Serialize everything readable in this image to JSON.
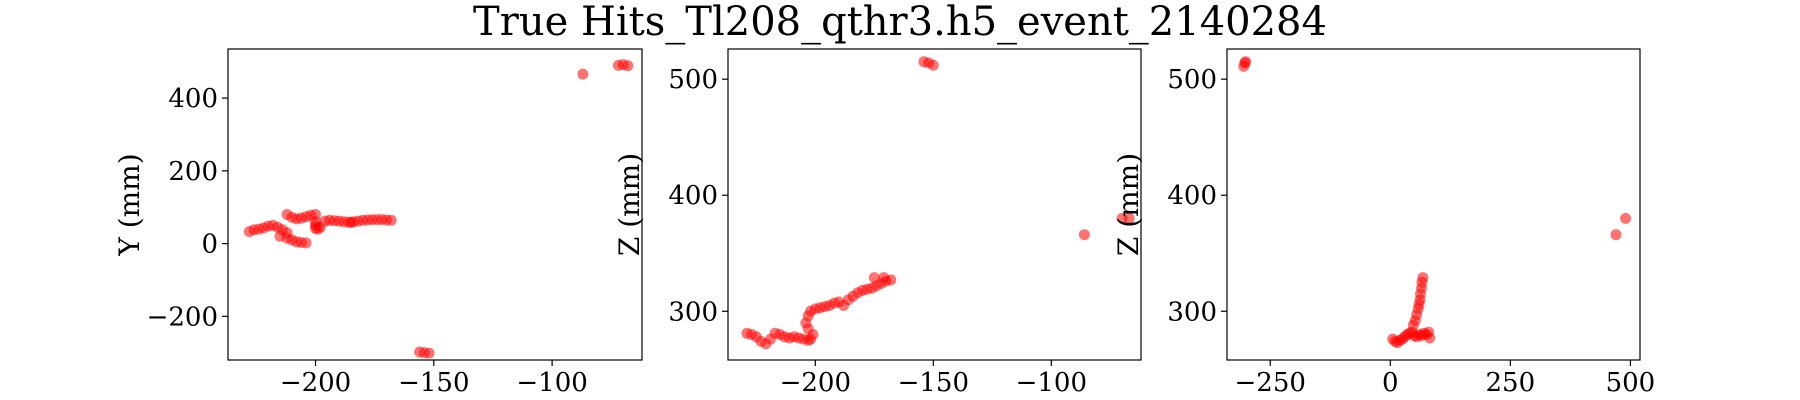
{
  "figure": {
    "title": "True Hits_Tl208_qthr3.h5_event_2140284"
  },
  "chart_data": [
    {
      "type": "scatter",
      "xlabel": "",
      "ylabel": "Y (mm)",
      "xlim": [
        -237,
        -62
      ],
      "ylim": [
        -320,
        535
      ],
      "xticks": [
        -200,
        -150,
        -100
      ],
      "xtick_labels": [
        "−200",
        "−150",
        "−100"
      ],
      "yticks": [
        -200,
        0,
        200,
        400
      ],
      "ytick_labels": [
        "−200",
        "0",
        "200",
        "400"
      ],
      "grid": false,
      "series": [
        {
          "color": "#ff0000",
          "points": [
            [
              -228,
              33
            ],
            [
              -226,
              38
            ],
            [
              -224,
              40
            ],
            [
              -222,
              43
            ],
            [
              -220,
              48
            ],
            [
              -218,
              50
            ],
            [
              -216,
              45
            ],
            [
              -214,
              38
            ],
            [
              -212,
              30
            ],
            [
              -215,
              20
            ],
            [
              -212,
              15
            ],
            [
              -210,
              10
            ],
            [
              -208,
              5
            ],
            [
              -206,
              3
            ],
            [
              -204,
              2
            ],
            [
              -212,
              80
            ],
            [
              -210,
              72
            ],
            [
              -208,
              68
            ],
            [
              -206,
              70
            ],
            [
              -204,
              74
            ],
            [
              -202,
              78
            ],
            [
              -200,
              80
            ],
            [
              -200,
              60
            ],
            [
              -200,
              50
            ],
            [
              -200,
              42
            ],
            [
              -199,
              40
            ],
            [
              -198,
              45
            ],
            [
              -196,
              62
            ],
            [
              -194,
              64
            ],
            [
              -192,
              63
            ],
            [
              -190,
              62
            ],
            [
              -188,
              60
            ],
            [
              -186,
              59
            ],
            [
              -185,
              58
            ],
            [
              -184,
              60
            ],
            [
              -182,
              62
            ],
            [
              -180,
              64
            ],
            [
              -178,
              65
            ],
            [
              -176,
              66
            ],
            [
              -174,
              66
            ],
            [
              -172,
              66
            ],
            [
              -170,
              65
            ],
            [
              -168,
              64
            ],
            [
              -156,
              -298
            ],
            [
              -154,
              -300
            ],
            [
              -152,
              -301
            ],
            [
              -87,
              466
            ],
            [
              -72,
              490
            ],
            [
              -70,
              492
            ],
            [
              -68,
              489
            ]
          ]
        }
      ]
    },
    {
      "type": "scatter",
      "xlabel": "",
      "ylabel": "Z (mm)",
      "xlim": [
        -237,
        -62
      ],
      "ylim": [
        258,
        526
      ],
      "xticks": [
        -200,
        -150,
        -100
      ],
      "xtick_labels": [
        "−200",
        "−150",
        "−100"
      ],
      "yticks": [
        300,
        400,
        500
      ],
      "ytick_labels": [
        "300",
        "400",
        "500"
      ],
      "grid": false,
      "series": [
        {
          "color": "#ff0000",
          "points": [
            [
              -229,
              281
            ],
            [
              -227,
              280
            ],
            [
              -225,
              278
            ],
            [
              -223,
              274
            ],
            [
              -221,
              272
            ],
            [
              -219,
              276
            ],
            [
              -217,
              281
            ],
            [
              -215,
              280
            ],
            [
              -213,
              278
            ],
            [
              -211,
              277
            ],
            [
              -209,
              278
            ],
            [
              -207,
              277
            ],
            [
              -205,
              276
            ],
            [
              -203,
              275
            ],
            [
              -202,
              276
            ],
            [
              -201,
              280
            ],
            [
              -203,
              285
            ],
            [
              -204,
              290
            ],
            [
              -203,
              296
            ],
            [
              -202,
              300
            ],
            [
              -200,
              302
            ],
            [
              -198,
              303
            ],
            [
              -196,
              304
            ],
            [
              -194,
              305
            ],
            [
              -192,
              307
            ],
            [
              -190,
              308
            ],
            [
              -188,
              305
            ],
            [
              -186,
              310
            ],
            [
              -184,
              313
            ],
            [
              -182,
              316
            ],
            [
              -180,
              318
            ],
            [
              -178,
              319
            ],
            [
              -176,
              320
            ],
            [
              -174,
              322
            ],
            [
              -172,
              324
            ],
            [
              -170,
              326
            ],
            [
              -168,
              327
            ],
            [
              -171,
              329
            ],
            [
              -175,
              329
            ],
            [
              -154,
              515
            ],
            [
              -152,
              514
            ],
            [
              -150,
              512
            ],
            [
              -86,
              366
            ],
            [
              -70,
              380
            ],
            [
              -67,
              380
            ]
          ]
        }
      ]
    },
    {
      "type": "scatter",
      "xlabel": "",
      "ylabel": "Z (mm)",
      "xlim": [
        -340,
        520
      ],
      "ylim": [
        258,
        526
      ],
      "xticks": [
        -250,
        0,
        250,
        500
      ],
      "xtick_labels": [
        "−250",
        "0",
        "250",
        "500"
      ],
      "yticks": [
        300,
        400,
        500
      ],
      "ytick_labels": [
        "300",
        "400",
        "500"
      ],
      "grid": false,
      "series": [
        {
          "color": "#ff0000",
          "points": [
            [
              -305,
              511
            ],
            [
              -303,
              514
            ],
            [
              -301,
              515
            ],
            [
              5,
              276
            ],
            [
              10,
              274
            ],
            [
              15,
              273
            ],
            [
              20,
              275
            ],
            [
              25,
              276
            ],
            [
              30,
              278
            ],
            [
              35,
              280
            ],
            [
              40,
              281
            ],
            [
              45,
              282
            ],
            [
              50,
              279
            ],
            [
              55,
              278
            ],
            [
              60,
              280
            ],
            [
              65,
              279
            ],
            [
              70,
              281
            ],
            [
              75,
              280
            ],
            [
              80,
              282
            ],
            [
              82,
              277
            ],
            [
              48,
              288
            ],
            [
              52,
              292
            ],
            [
              55,
              297
            ],
            [
              58,
              302
            ],
            [
              60,
              306
            ],
            [
              62,
              310
            ],
            [
              63,
              315
            ],
            [
              65,
              320
            ],
            [
              66,
              325
            ],
            [
              68,
              329
            ],
            [
              470,
              366
            ],
            [
              490,
              380
            ]
          ]
        }
      ]
    }
  ]
}
